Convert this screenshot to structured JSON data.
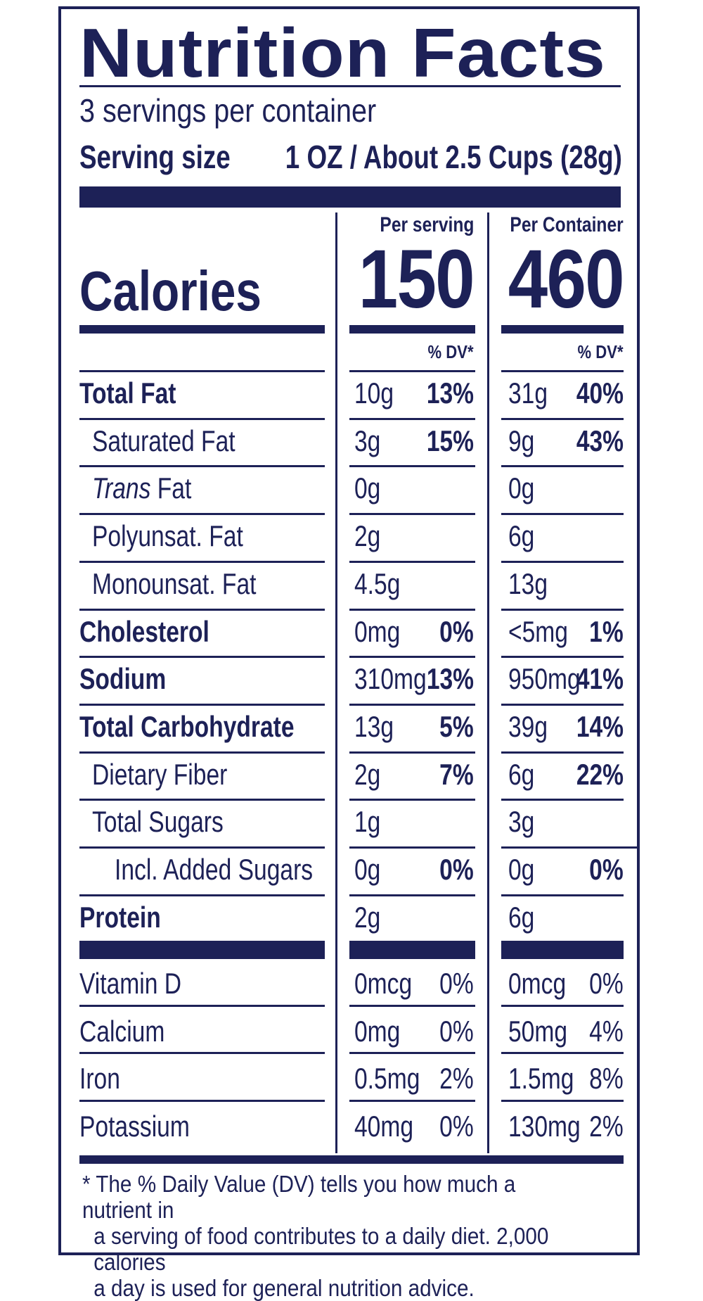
{
  "label": {
    "title": "Nutrition Facts",
    "servings_per_container": "3 servings per container",
    "serving_size_label": "Serving size",
    "serving_size_value": "1 OZ / About 2.5 Cups (28g)",
    "calories_label": "Calories",
    "columns": [
      {
        "header": "Per serving",
        "calories": "150",
        "dv_header": "% DV*"
      },
      {
        "header": "Per Container",
        "calories": "460",
        "dv_header": "% DV*"
      }
    ],
    "nutrients": [
      {
        "name": "Total Fat",
        "bold": true,
        "indent": 0,
        "serving_amount": "10g",
        "serving_dv": "13%",
        "container_amount": "31g",
        "container_dv": "40%"
      },
      {
        "name": "Saturated Fat",
        "bold": false,
        "indent": 1,
        "serving_amount": "3g",
        "serving_dv": "15%",
        "container_amount": "9g",
        "container_dv": "43%"
      },
      {
        "name": "Trans Fat",
        "italic_prefix": "Trans",
        "rest": " Fat",
        "bold": false,
        "indent": 1,
        "serving_amount": "0g",
        "serving_dv": "",
        "container_amount": "0g",
        "container_dv": ""
      },
      {
        "name": "Polyunsat. Fat",
        "bold": false,
        "indent": 1,
        "serving_amount": "2g",
        "serving_dv": "",
        "container_amount": "6g",
        "container_dv": ""
      },
      {
        "name": "Monounsat. Fat",
        "bold": false,
        "indent": 1,
        "serving_amount": "4.5g",
        "serving_dv": "",
        "container_amount": "13g",
        "container_dv": ""
      },
      {
        "name": "Cholesterol",
        "bold": true,
        "indent": 0,
        "serving_amount": "0mg",
        "serving_dv": "0%",
        "container_amount": "<5mg",
        "container_dv": "1%"
      },
      {
        "name": "Sodium",
        "bold": true,
        "indent": 0,
        "serving_amount": "310mg",
        "serving_dv": "13%",
        "container_amount": "950mg",
        "container_dv": "41%"
      },
      {
        "name": "Total Carbohydrate",
        "bold": true,
        "indent": 0,
        "serving_amount": "13g",
        "serving_dv": "5%",
        "container_amount": "39g",
        "container_dv": "14%"
      },
      {
        "name": "Dietary Fiber",
        "bold": false,
        "indent": 1,
        "serving_amount": "2g",
        "serving_dv": "7%",
        "container_amount": "6g",
        "container_dv": "22%"
      },
      {
        "name": "Total Sugars",
        "bold": false,
        "indent": 1,
        "serving_amount": "1g",
        "serving_dv": "",
        "container_amount": "3g",
        "container_dv": ""
      },
      {
        "name": "Incl. Added Sugars",
        "bold": false,
        "indent": 2,
        "serving_amount": "0g",
        "serving_dv": "0%",
        "container_amount": "0g",
        "container_dv": "0%"
      },
      {
        "name": "Protein",
        "bold": true,
        "indent": 0,
        "serving_amount": "2g",
        "serving_dv": "",
        "container_amount": "6g",
        "container_dv": ""
      }
    ],
    "vitamins": [
      {
        "name": "Vitamin D",
        "serving_amount": "0mcg",
        "serving_dv": "0%",
        "container_amount": "0mcg",
        "container_dv": "0%"
      },
      {
        "name": "Calcium",
        "serving_amount": "0mg",
        "serving_dv": "0%",
        "container_amount": "50mg",
        "container_dv": "4%"
      },
      {
        "name": "Iron",
        "serving_amount": "0.5mg",
        "serving_dv": "2%",
        "container_amount": "1.5mg",
        "container_dv": "8%"
      },
      {
        "name": "Potassium",
        "serving_amount": "40mg",
        "serving_dv": "0%",
        "container_amount": "130mg",
        "container_dv": "2%"
      }
    ],
    "footnote": [
      "* The % Daily Value (DV) tells you how much a nutrient in",
      "a serving of food contributes to a daily diet. 2,000 calories",
      "a day is used for general nutrition advice."
    ],
    "ink_color": "#1d2157"
  }
}
